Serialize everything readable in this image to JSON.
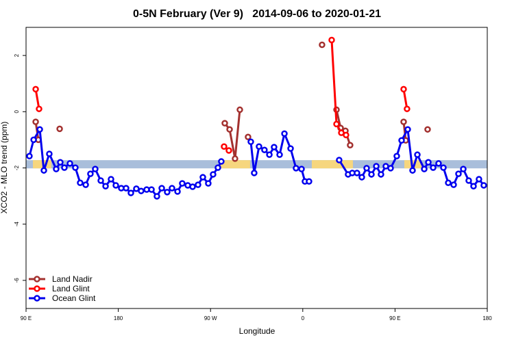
{
  "chart_data": {
    "type": "line",
    "title": "0-5N February (Ver 9)   2014-09-06 to 2020-01-21",
    "x_label": "Longitude",
    "y_label": "XCO2 - MLO trend (ppm)",
    "xlim": [
      90,
      540
    ],
    "xticks": [
      {
        "value": 90,
        "label": "90 E"
      },
      180,
      {
        "value": 270,
        "label": "90 W"
      },
      {
        "value": 360,
        "label": "0"
      },
      {
        "value": 450,
        "label": "90 E"
      },
      {
        "value": 540,
        "label": "180"
      }
    ],
    "ylim": [
      -7,
      3
    ],
    "yticks": [
      -6,
      -4,
      -2,
      0,
      2
    ],
    "legend": "bottomleft",
    "band": {
      "value": -1.87,
      "color": "#a9bedb",
      "land_color": "#f6d67e",
      "land": [
        [
          96.7,
          114.7
        ],
        [
          278.5,
          308.6
        ],
        [
          368.8,
          408.9
        ],
        [
          459.1,
          475.8
        ]
      ]
    },
    "series": [
      {
        "name": "Land Nadir",
        "color": "#a3312f",
        "x": [
          99.4,
          102.0,
          null,
          122.8,
          null,
          283.9,
          288.6,
          293.9,
          298.6,
          null,
          306.6,
          null,
          378.8,
          null,
          392.9,
          396.9,
          401.6,
          406.2,
          null,
          458.4,
          460.4,
          null,
          481.8
        ],
        "values": [
          -0.36,
          -1.0,
          null,
          -0.61,
          null,
          -0.41,
          -0.63,
          -1.67,
          0.07,
          null,
          -0.9,
          null,
          2.38,
          null,
          0.07,
          -0.58,
          -0.68,
          -1.19,
          null,
          -0.36,
          -1.02,
          null,
          -0.63
        ]
      },
      {
        "name": "Land Glint",
        "color": "#ff0000",
        "x": [
          99.4,
          102.7,
          null,
          283.2,
          287.9,
          null,
          388.2,
          392.9,
          397.6,
          402.2,
          null,
          458.4,
          461.7
        ],
        "values": [
          0.8,
          0.1,
          null,
          -1.24,
          -1.38,
          null,
          2.55,
          -0.44,
          -0.75,
          -0.83,
          null,
          0.8,
          0.1
        ]
      },
      {
        "name": "Ocean Glint",
        "color": "#0000ee",
        "x": [
          93.3,
          97.4,
          103.4,
          107.4,
          112.7,
          119.4,
          123.4,
          127.4,
          132.8,
          138.1,
          142.8,
          148.2,
          152.8,
          157.5,
          162.9,
          167.6,
          172.9,
          177.6,
          182.9,
          187.6,
          192.3,
          197.6,
          202.3,
          207.7,
          212.4,
          217.7,
          222.4,
          227.7,
          232.4,
          237.8,
          242.4,
          247.8,
          252.5,
          257.8,
          262.5,
          267.8,
          272.5,
          277.2,
          280.5,
          null,
          309.3,
          312.6,
          317.3,
          322.6,
          327.4,
          332.0,
          337.4,
          342.1,
          348.1,
          353.4,
          358.8,
          362.1,
          366.1,
          null,
          395.5,
          404.2,
          408.3,
          412.9,
          417.6,
          422.3,
          427.0,
          431.7,
          436.3,
          441.0,
          445.7,
          451.7,
          456.4,
          462.4,
          467.1,
          471.8,
          478.5,
          482.5,
          487.2,
          492.5,
          497.2,
          501.9,
          507.2,
          511.9,
          516.6,
          521.9,
          526.6,
          531.9,
          536.6
        ],
        "values": [
          -1.58,
          -1.0,
          -0.63,
          -2.09,
          -1.5,
          -2.04,
          -1.8,
          -1.99,
          -1.84,
          -1.99,
          -2.53,
          -2.6,
          -2.21,
          -2.04,
          -2.45,
          -2.65,
          -2.4,
          -2.62,
          -2.72,
          -2.72,
          -2.89,
          -2.74,
          -2.82,
          -2.77,
          -2.77,
          -3.01,
          -2.72,
          -2.86,
          -2.72,
          -2.84,
          -2.55,
          -2.62,
          -2.67,
          -2.6,
          -2.33,
          -2.55,
          -2.23,
          -1.99,
          -1.77,
          null,
          -1.07,
          -2.18,
          -1.24,
          -1.36,
          -1.53,
          -1.26,
          -1.53,
          -0.78,
          -1.31,
          -2.01,
          -2.04,
          -2.48,
          -2.48,
          null,
          -1.72,
          -2.23,
          -2.18,
          -2.18,
          -2.33,
          -2.01,
          -2.23,
          -1.94,
          -2.23,
          -1.94,
          -2.01,
          -1.58,
          -1.02,
          -0.63,
          -2.09,
          -1.53,
          -2.04,
          -1.8,
          -1.99,
          -1.84,
          -1.99,
          -2.53,
          -2.6,
          -2.21,
          -2.04,
          -2.45,
          -2.65,
          -2.4,
          -2.62
        ]
      }
    ]
  }
}
